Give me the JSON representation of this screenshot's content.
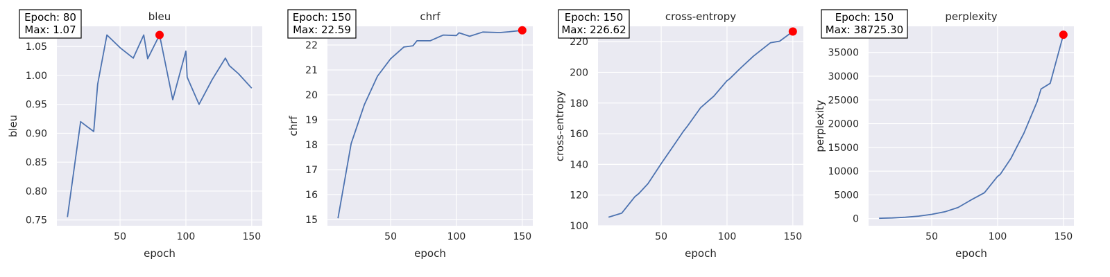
{
  "chart_data": [
    {
      "type": "line",
      "title": "bleu",
      "xlabel": "epoch",
      "ylabel": "bleu",
      "xlim": [
        2,
        158
      ],
      "ylim": [
        0.74,
        1.085
      ],
      "xticks": [
        50,
        100,
        150
      ],
      "yticks": [
        0.75,
        0.8,
        0.85,
        0.9,
        0.95,
        1.0,
        1.05
      ],
      "ytick_decimals": 2,
      "x": [
        10,
        20,
        30,
        33,
        40,
        50,
        60,
        68,
        71,
        80,
        90,
        100,
        101,
        110,
        120,
        130,
        133,
        140,
        150
      ],
      "y": [
        0.755,
        0.92,
        0.903,
        0.985,
        1.07,
        1.048,
        1.03,
        1.07,
        1.029,
        1.07,
        0.958,
        1.042,
        0.997,
        0.95,
        0.993,
        1.03,
        1.017,
        1.003,
        0.978
      ],
      "max_point": {
        "x": 80,
        "y": 1.07
      },
      "annotation": {
        "line1": "Epoch: 80",
        "line2": "Max: 1.07"
      },
      "grid": true
    },
    {
      "type": "line",
      "title": "chrf",
      "xlabel": "epoch",
      "ylabel": "chrf",
      "xlim": [
        2,
        158
      ],
      "ylim": [
        14.75,
        22.75
      ],
      "xticks": [
        50,
        100,
        150
      ],
      "yticks": [
        15,
        16,
        17,
        18,
        19,
        20,
        21,
        22
      ],
      "ytick_decimals": 0,
      "x": [
        10,
        20,
        30,
        40,
        50,
        60,
        67,
        70,
        80,
        90,
        100,
        102,
        110,
        120,
        133,
        140,
        150
      ],
      "y": [
        15.05,
        18.05,
        19.6,
        20.75,
        21.45,
        21.92,
        21.97,
        22.17,
        22.17,
        22.4,
        22.38,
        22.49,
        22.35,
        22.52,
        22.5,
        22.53,
        22.59
      ],
      "max_point": {
        "x": 150,
        "y": 22.59
      },
      "annotation": {
        "line1": "Epoch: 150",
        "line2": "Max: 22.59"
      },
      "grid": true
    },
    {
      "type": "line",
      "title": "cross-entropy",
      "xlabel": "epoch",
      "ylabel": "cross-entropy",
      "xlim": [
        2,
        158
      ],
      "ylim": [
        100,
        230
      ],
      "xticks": [
        50,
        100,
        150
      ],
      "yticks": [
        100,
        120,
        140,
        160,
        180,
        200,
        220
      ],
      "ytick_decimals": 0,
      "x": [
        10,
        20,
        30,
        33,
        40,
        50,
        60,
        67,
        70,
        80,
        90,
        100,
        102,
        110,
        120,
        133,
        140,
        150
      ],
      "y": [
        105.6,
        108.2,
        118.9,
        121.0,
        127.5,
        140.5,
        153.0,
        161.7,
        165.0,
        177.0,
        184.5,
        194.5,
        195.8,
        202.5,
        210.5,
        219.3,
        220.3,
        226.62
      ],
      "max_point": {
        "x": 150,
        "y": 226.62
      },
      "annotation": {
        "line1": "Epoch: 150",
        "line2": "Max: 226.62"
      },
      "grid": true
    },
    {
      "type": "line",
      "title": "perplexity",
      "xlabel": "epoch",
      "ylabel": "perplexity",
      "xlim": [
        2,
        158
      ],
      "ylim": [
        -1500,
        40500
      ],
      "xticks": [
        50,
        100,
        150
      ],
      "yticks": [
        0,
        5000,
        10000,
        15000,
        20000,
        25000,
        30000,
        35000
      ],
      "ytick_decimals": 0,
      "x": [
        10,
        20,
        30,
        40,
        50,
        60,
        70,
        80,
        90,
        100,
        102,
        110,
        120,
        130,
        133,
        140,
        150
      ],
      "y": [
        80,
        150,
        290,
        520,
        900,
        1450,
        2350,
        3950,
        5450,
        8900,
        9300,
        12600,
        18000,
        24600,
        27300,
        28500,
        38725.3
      ],
      "max_point": {
        "x": 150,
        "y": 38725.3
      },
      "annotation": {
        "line1": "Epoch: 150",
        "line2": "Max: 38725.30"
      },
      "grid": true
    }
  ]
}
